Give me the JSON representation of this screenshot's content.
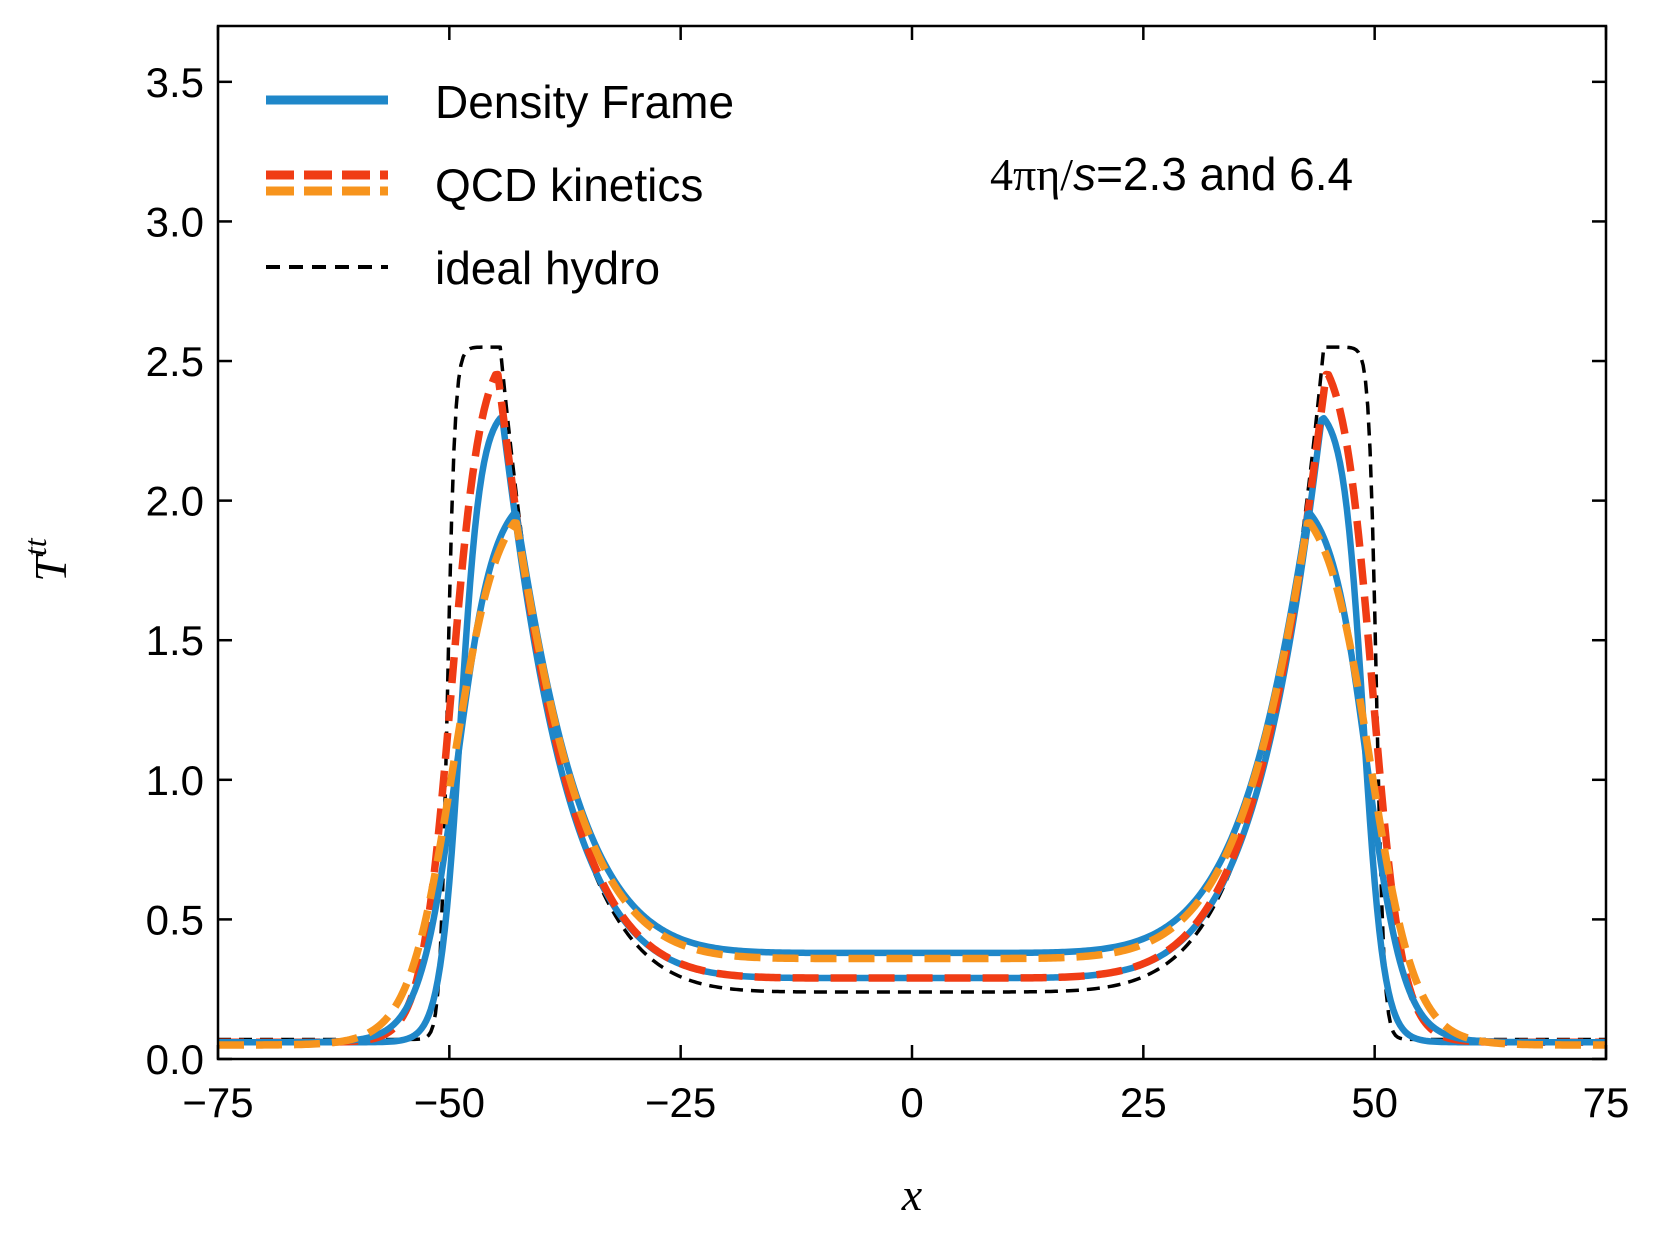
{
  "chart_data": {
    "type": "line",
    "title": "",
    "xlabel": "x",
    "ylabel": "T",
    "ylabel_superscript": "tt",
    "xlim": [
      -75,
      75
    ],
    "ylim": [
      0,
      3.7
    ],
    "xticks": [
      -75,
      -50,
      -25,
      0,
      25,
      50,
      75
    ],
    "xtick_labels": [
      "−75",
      "−50",
      "−25",
      "0",
      "25",
      "50",
      "75"
    ],
    "yticks": [
      0,
      0.5,
      1.0,
      1.5,
      2.0,
      2.5,
      3.0,
      3.5
    ],
    "ytick_labels": [
      "0.0",
      "0.5",
      "1.0",
      "1.5",
      "2.0",
      "2.5",
      "3.0",
      "3.5"
    ],
    "annotation": {
      "prefix": "4πη/",
      "var": "s",
      "suffix": "=2.3 and 6.4"
    },
    "legend": {
      "position": "top-left",
      "entries": [
        {
          "label": "Density Frame",
          "style": "solid",
          "colors": [
            "#1f87c9"
          ]
        },
        {
          "label": "QCD kinetics",
          "style": "dashed",
          "colors": [
            "#f03c14",
            "#f7941d"
          ]
        },
        {
          "label": "ideal hydro",
          "style": "dashed-thin",
          "colors": [
            "#000000"
          ]
        }
      ]
    },
    "series": [
      {
        "name": "ideal hydro",
        "color": "#000000",
        "style": "dashed-thin",
        "params": {
          "peak_x": 44.5,
          "peak_y": 2.55,
          "center_y": 0.24,
          "edge_x": 50.2,
          "edge_w": 0.4,
          "base": 0.07
        }
      },
      {
        "name": "Density Frame (4πη/s=2.3)",
        "color": "#1f87c9",
        "style": "solid",
        "params": {
          "peak_x": 44.3,
          "peak_y": 2.34,
          "center_y": 0.29,
          "edge_x": 48.8,
          "edge_w": 1.1,
          "base": 0.06
        }
      },
      {
        "name": "QCD kinetics (4πη/s=2.3)",
        "color": "#f03c14",
        "style": "dashed",
        "params": {
          "peak_x": 44.8,
          "peak_y": 2.57,
          "center_y": 0.29,
          "edge_x": 49.8,
          "edge_w": 1.6,
          "base": 0.06
        }
      },
      {
        "name": "Density Frame (4πη/s=6.4)",
        "color": "#1f87c9",
        "style": "solid",
        "params": {
          "peak_x": 42.8,
          "peak_y": 2.04,
          "center_y": 0.38,
          "edge_x": 49.2,
          "edge_w": 2.0,
          "base": 0.06
        }
      },
      {
        "name": "QCD kinetics (4πη/s=6.4)",
        "color": "#f7941d",
        "style": "dashed",
        "params": {
          "peak_x": 42.8,
          "peak_y": 2.04,
          "center_y": 0.36,
          "edge_x": 49.6,
          "edge_w": 2.4,
          "base": 0.05
        }
      }
    ]
  }
}
